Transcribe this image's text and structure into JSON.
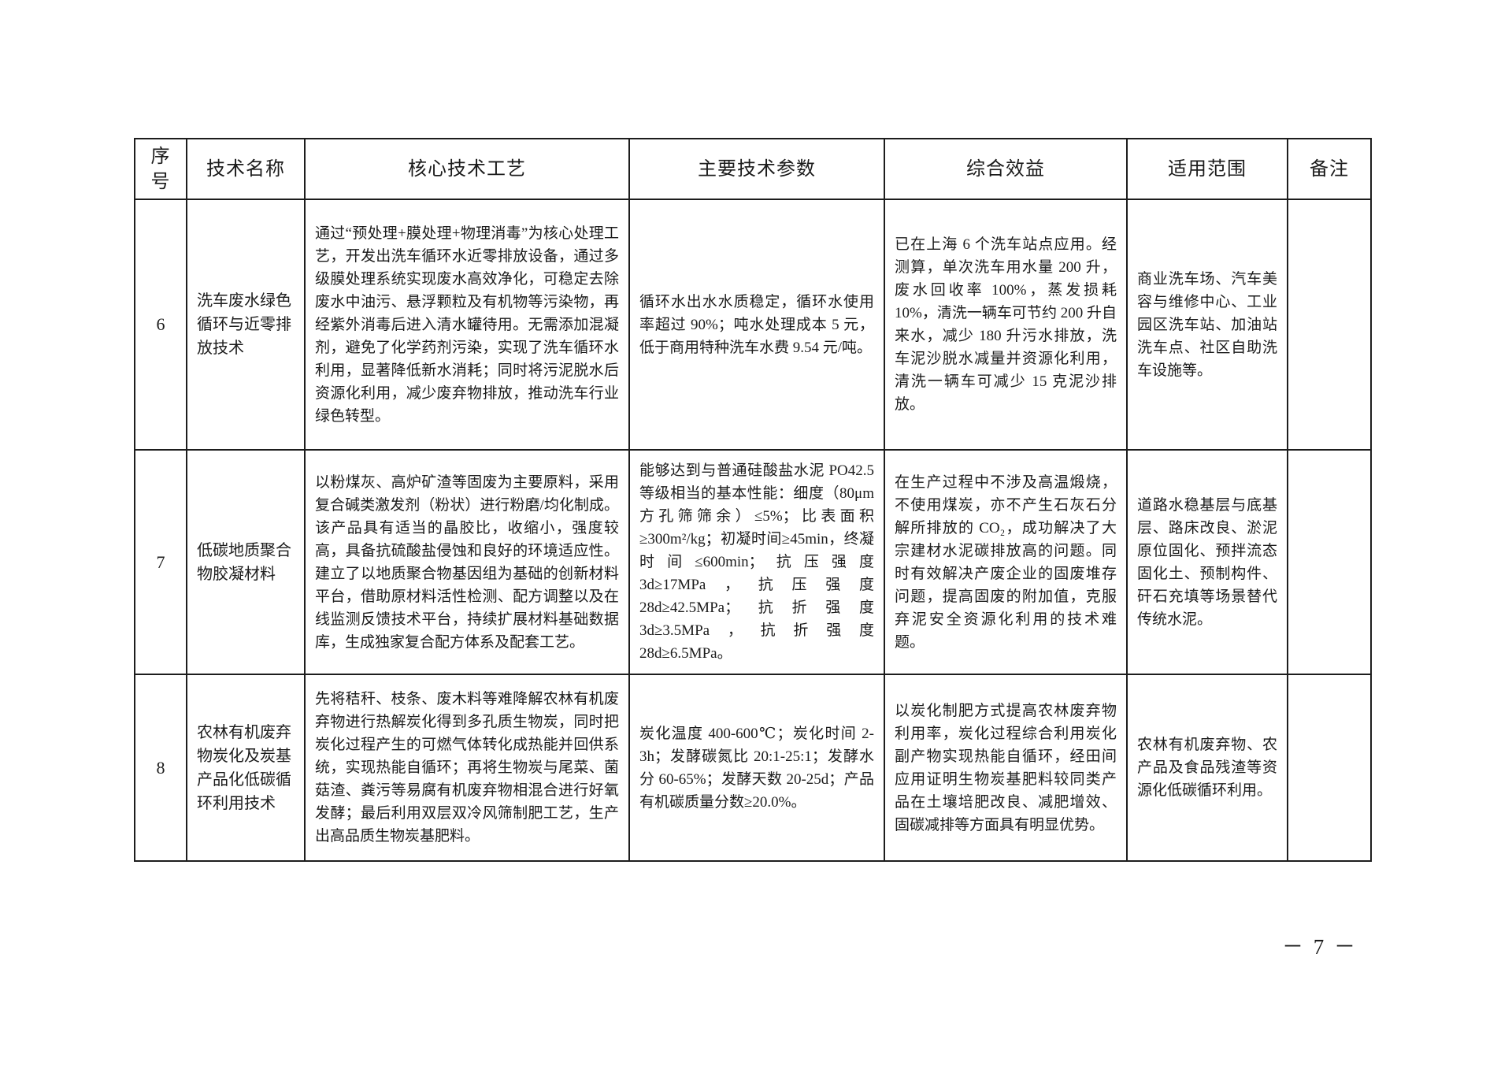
{
  "page": {
    "number": "－ 7 －"
  },
  "table": {
    "headers": {
      "no": "序号",
      "name": "技术名称",
      "process": "核心技术工艺",
      "params": "主要技术参数",
      "benefit": "综合效益",
      "scope": "适用范围",
      "remark": "备注"
    },
    "rows": [
      {
        "no": "6",
        "name": "洗车废水绿色循环与近零排放技术",
        "process": "通过“预处理+膜处理+物理消毒”为核心处理工艺，开发出洗车循环水近零排放设备，通过多级膜处理系统实现废水高效净化，可稳定去除废水中油污、悬浮颗粒及有机物等污染物，再经紫外消毒后进入清水罐待用。无需添加混凝剂，避免了化学药剂污染，实现了洗车循环水利用，显著降低新水消耗；同时将污泥脱水后资源化利用，减少废弃物排放，推动洗车行业绿色转型。",
        "params": "循环水出水水质稳定，循环水使用率超过 90%；吨水处理成本 5 元，低于商用特种洗车水费 9.54 元/吨。",
        "benefit": "已在上海 6 个洗车站点应用。经测算，单次洗车用水量 200 升，废水回收率 100%，蒸发损耗 10%，清洗一辆车可节约 200 升自来水，减少 180 升污水排放，洗车泥沙脱水减量并资源化利用，清洗一辆车可减少 15 克泥沙排放。",
        "scope": "商业洗车场、汽车美容与维修中心、工业园区洗车站、加油站洗车点、社区自助洗车设施等。",
        "remark": ""
      },
      {
        "no": "7",
        "name": "低碳地质聚合物胶凝材料",
        "process": "以粉煤灰、高炉矿渣等固废为主要原料，采用复合碱类激发剂（粉状）进行粉磨/均化制成。该产品具有适当的晶胶比，收缩小，强度较高，具备抗硫酸盐侵蚀和良好的环境适应性。建立了以地质聚合物基因组为基础的创新材料平台，借助原材料活性检测、配方调整以及在线监测反馈技术平台，持续扩展材料基础数据库，生成独家复合配方体系及配套工艺。",
        "params": "能够达到与普通硅酸盐水泥 PO42.5 等级相当的基本性能：细度（80μm 方孔筛筛余）≤5%；比表面积≥300m²/kg；初凝时间≥45min，终凝时间≤600min；抗压强度 3d≥17MPa，抗压强度 28d≥42.5MPa；抗折强度 3d≥3.5MPa，抗折强度 28d≥6.5MPa。",
        "benefit": "在生产过程中不涉及高温煅烧，不使用煤炭，亦不产生石灰石分解所排放的 CO₂，成功解决了大宗建材水泥碳排放高的问题。同时有效解决产废企业的固废堆存问题，提高固废的附加值，克服弃泥安全资源化利用的技术难题。",
        "scope": "道路水稳基层与底基层、路床改良、淤泥原位固化、预拌流态固化土、预制构件、矸石充填等场景替代传统水泥。",
        "remark": ""
      },
      {
        "no": "8",
        "name": "农林有机废弃物炭化及炭基产品化低碳循环利用技术",
        "process": "先将秸秆、枝条、废木料等难降解农林有机废弃物进行热解炭化得到多孔质生物炭，同时把炭化过程产生的可燃气体转化成热能并回供系统，实现热能自循环；再将生物炭与尾菜、菌菇渣、粪污等易腐有机废弃物相混合进行好氧发酵；最后利用双层双冷风筛制肥工艺，生产出高品质生物炭基肥料。",
        "params": "炭化温度 400-600℃；炭化时间 2-3h；发酵碳氮比 20:1-25:1；发酵水分 60-65%；发酵天数 20-25d；产品有机碳质量分数≥20.0%。",
        "benefit": "以炭化制肥方式提高农林废弃物利用率，炭化过程综合利用炭化副产物实现热能自循环，经田间应用证明生物炭基肥料较同类产品在土壤培肥改良、减肥增效、固碳减排等方面具有明显优势。",
        "scope": "农林有机废弃物、农产品及食品残渣等资源化低碳循环利用。",
        "remark": ""
      }
    ]
  }
}
